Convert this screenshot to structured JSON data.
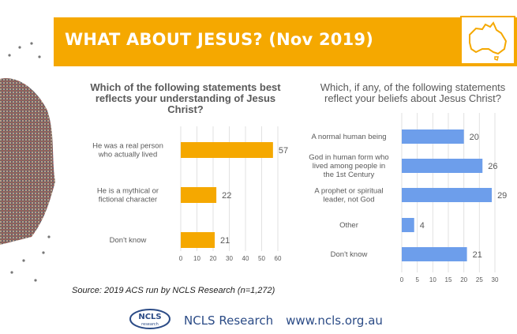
{
  "header": {
    "title": "WHAT ABOUT JESUS? (Nov 2019)"
  },
  "source": "Source: 2019 ACS run by NCLS Research (n=1,272)",
  "footer": {
    "org": "NCLS Research",
    "url": "www.ncls.org.au",
    "logo_text": "NCLS",
    "logo_sub": "research"
  },
  "colors": {
    "accent": "#f5a800",
    "bar_left": "#f5a800",
    "bar_right": "#6d9eeb"
  },
  "chart_data": [
    {
      "type": "bar",
      "orientation": "horizontal",
      "title": "Which of the following statements best reflects your understanding of Jesus Christ?",
      "categories": [
        "He was a real person who actually lived",
        "He is a mythical or fictional character",
        "Don't know"
      ],
      "values": [
        57,
        22,
        21
      ],
      "xlim": [
        0,
        60
      ],
      "xticks": [
        0,
        10,
        20,
        30,
        40,
        50,
        60
      ],
      "grid": true
    },
    {
      "type": "bar",
      "orientation": "horizontal",
      "title": "Which, if any, of the following statements reflect your beliefs about Jesus Christ?",
      "categories": [
        "A normal human being",
        "God in human form who lived among people in the 1st Century",
        "A prophet or spiritual leader, not God",
        "Other",
        "Don't know"
      ],
      "values": [
        20,
        26,
        29,
        4,
        21
      ],
      "xlim": [
        0,
        30
      ],
      "xticks": [
        0,
        5,
        10,
        15,
        20,
        25,
        30
      ],
      "grid": true
    }
  ]
}
